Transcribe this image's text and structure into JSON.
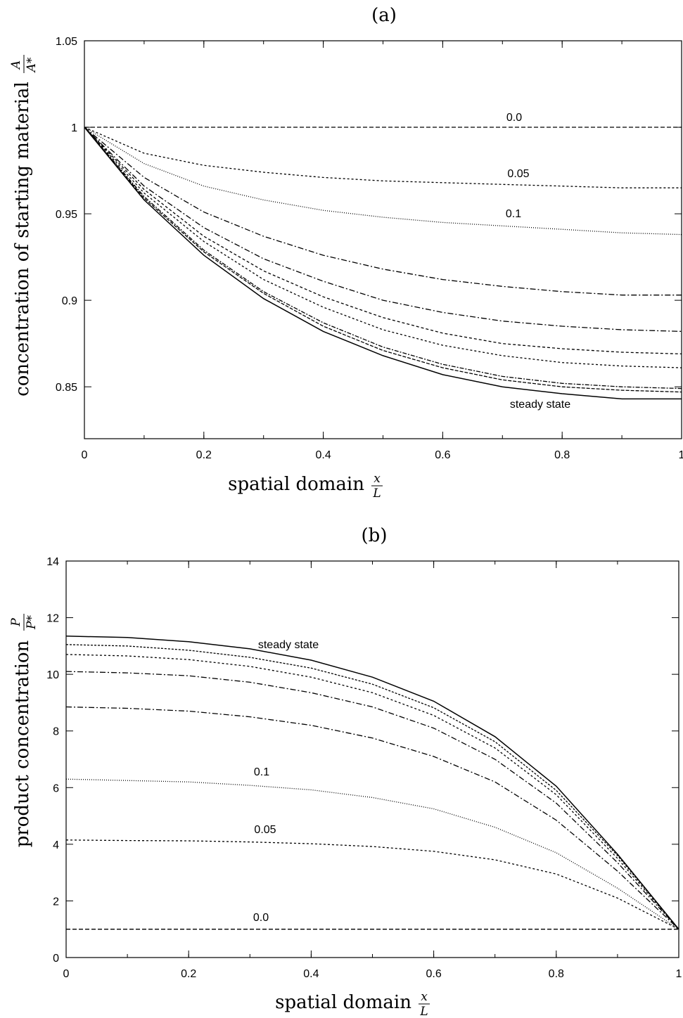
{
  "chart_data": [
    {
      "type": "line",
      "title": "(a)",
      "xlabel": "spatial domain",
      "xlabel_fraction": {
        "num": "x",
        "den": "L"
      },
      "ylabel": "concentration of starting material",
      "ylabel_fraction": {
        "num": "A",
        "den": "A*"
      },
      "xlim": [
        0,
        1
      ],
      "ylim": [
        0.82,
        1.05
      ],
      "xticks": [
        "0",
        "0.2",
        "0.4",
        "0.6",
        "0.8",
        "1"
      ],
      "yticks": [
        "0.85",
        "0.9",
        "0.95",
        "1",
        "1.05"
      ],
      "ytick_values": [
        0.85,
        0.9,
        0.95,
        1.0,
        1.05
      ],
      "grid": false,
      "x": [
        0,
        0.1,
        0.2,
        0.3,
        0.4,
        0.5,
        0.6,
        0.7,
        0.8,
        0.9,
        1.0
      ],
      "series": [
        {
          "name": "0.0",
          "dash": "6,3",
          "values": [
            1.0,
            1.0,
            1.0,
            1.0,
            1.0,
            1.0,
            1.0,
            1.0,
            1.0,
            1.0,
            1.0
          ]
        },
        {
          "name": "0.05",
          "dash": "3,3",
          "values": [
            1.0,
            0.985,
            0.978,
            0.974,
            0.971,
            0.969,
            0.968,
            0.967,
            0.966,
            0.965,
            0.965
          ]
        },
        {
          "name": "0.1",
          "dash": "1,2",
          "values": [
            1.0,
            0.979,
            0.966,
            0.958,
            0.952,
            0.948,
            0.945,
            0.943,
            0.941,
            0.939,
            0.938
          ]
        },
        {
          "dash": "8,3,2,3",
          "values": [
            1.0,
            0.971,
            0.951,
            0.937,
            0.926,
            0.918,
            0.912,
            0.908,
            0.905,
            0.903,
            0.903
          ]
        },
        {
          "dash": "8,3,2,3",
          "values": [
            1.0,
            0.966,
            0.942,
            0.924,
            0.911,
            0.9,
            0.893,
            0.888,
            0.885,
            0.883,
            0.882
          ]
        },
        {
          "dash": "4,3",
          "values": [
            1.0,
            0.964,
            0.937,
            0.917,
            0.902,
            0.89,
            0.881,
            0.875,
            0.872,
            0.87,
            0.869
          ]
        },
        {
          "dash": "3,3",
          "values": [
            1.0,
            0.962,
            0.934,
            0.912,
            0.896,
            0.883,
            0.874,
            0.868,
            0.864,
            0.862,
            0.861
          ]
        },
        {
          "dash": "6,2,2,2",
          "values": [
            1.0,
            0.96,
            0.929,
            0.905,
            0.887,
            0.873,
            0.863,
            0.856,
            0.852,
            0.85,
            0.849
          ]
        },
        {
          "dash": "5,2",
          "values": [
            1.0,
            0.959,
            0.928,
            0.904,
            0.885,
            0.871,
            0.861,
            0.854,
            0.85,
            0.848,
            0.847
          ]
        },
        {
          "name": "steady state",
          "dash": "",
          "values": [
            1.0,
            0.958,
            0.926,
            0.901,
            0.882,
            0.868,
            0.857,
            0.85,
            0.846,
            0.843,
            0.843
          ]
        }
      ]
    },
    {
      "type": "line",
      "title": "(b)",
      "xlabel": "spatial domain",
      "xlabel_fraction": {
        "num": "x",
        "den": "L"
      },
      "ylabel": "product concentration",
      "ylabel_fraction": {
        "num": "P",
        "den": "P*"
      },
      "xlim": [
        0,
        1
      ],
      "ylim": [
        0,
        14
      ],
      "xticks": [
        "0",
        "0.2",
        "0.4",
        "0.6",
        "0.8",
        "1"
      ],
      "yticks": [
        "0",
        "2",
        "4",
        "6",
        "8",
        "10",
        "12",
        "14"
      ],
      "ytick_values": [
        0,
        2,
        4,
        6,
        8,
        10,
        12,
        14
      ],
      "grid": false,
      "x": [
        0,
        0.1,
        0.2,
        0.3,
        0.4,
        0.5,
        0.6,
        0.7,
        0.8,
        0.9,
        1.0
      ],
      "series": [
        {
          "name": "0.0",
          "dash": "6,3",
          "values": [
            1.0,
            1.0,
            1.0,
            1.0,
            1.0,
            1.0,
            1.0,
            1.0,
            1.0,
            1.0,
            1.0
          ]
        },
        {
          "name": "0.05",
          "dash": "3,3",
          "values": [
            4.15,
            4.13,
            4.12,
            4.08,
            4.02,
            3.92,
            3.75,
            3.45,
            2.95,
            2.1,
            1.0
          ]
        },
        {
          "name": "0.1",
          "dash": "1,2",
          "values": [
            6.3,
            6.25,
            6.2,
            6.08,
            5.92,
            5.65,
            5.25,
            4.6,
            3.7,
            2.45,
            1.0
          ]
        },
        {
          "dash": "8,3,2,3",
          "values": [
            8.85,
            8.8,
            8.7,
            8.5,
            8.2,
            7.75,
            7.1,
            6.2,
            4.85,
            3.05,
            1.0
          ]
        },
        {
          "dash": "8,3,2,3",
          "values": [
            10.1,
            10.05,
            9.95,
            9.72,
            9.35,
            8.85,
            8.1,
            7.0,
            5.45,
            3.35,
            1.0
          ]
        },
        {
          "dash": "3,3",
          "values": [
            10.7,
            10.65,
            10.52,
            10.28,
            9.9,
            9.35,
            8.55,
            7.4,
            5.75,
            3.5,
            1.0
          ]
        },
        {
          "dash": "3,2",
          "values": [
            11.05,
            11.0,
            10.85,
            10.6,
            10.22,
            9.65,
            8.82,
            7.62,
            5.9,
            3.6,
            1.0
          ]
        },
        {
          "name": "steady state",
          "dash": "",
          "values": [
            11.35,
            11.3,
            11.15,
            10.9,
            10.5,
            9.9,
            9.05,
            7.8,
            6.05,
            3.65,
            1.0
          ]
        }
      ]
    }
  ]
}
